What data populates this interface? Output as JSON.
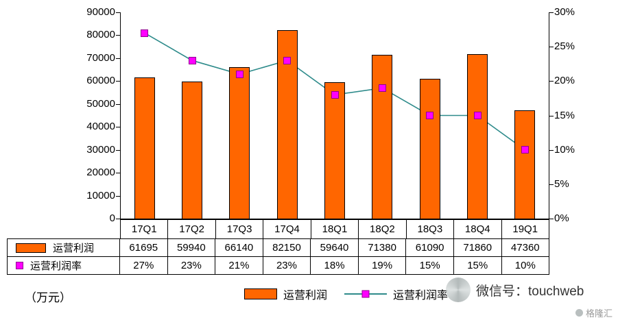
{
  "chart_data": {
    "type": "bar",
    "title": "",
    "categories": [
      "17Q1",
      "17Q2",
      "17Q3",
      "17Q4",
      "18Q1",
      "18Q2",
      "18Q3",
      "18Q4",
      "19Q1"
    ],
    "series": [
      {
        "name": "运营利润",
        "kind": "bar",
        "values": [
          61695,
          59940,
          66140,
          82150,
          59640,
          71380,
          61090,
          71860,
          47360
        ]
      },
      {
        "name": "运营利润率",
        "kind": "line",
        "values": [
          27,
          23,
          21,
          23,
          18,
          19,
          15,
          15,
          10
        ],
        "unit": "%"
      }
    ],
    "left_axis": {
      "min": 0,
      "max": 90000,
      "step": 10000,
      "tick_labels": [
        "0",
        "10000",
        "20000",
        "30000",
        "40000",
        "50000",
        "60000",
        "70000",
        "80000",
        "90000"
      ]
    },
    "right_axis": {
      "min": 0,
      "max": 30,
      "step": 5,
      "tick_labels": [
        "0%",
        "5%",
        "10%",
        "15%",
        "20%",
        "25%",
        "30%"
      ]
    },
    "colors": {
      "bar": "#FF6600",
      "line": "#2E8B8B",
      "marker": "#FF00FF"
    },
    "legend_position": "bottom",
    "grid": false
  },
  "table": {
    "rows": [
      {
        "label": "运营利润",
        "values": [
          "61695",
          "59940",
          "66140",
          "82150",
          "59640",
          "71380",
          "61090",
          "71860",
          "47360"
        ]
      },
      {
        "label": "运营利润率",
        "values": [
          "27%",
          "23%",
          "21%",
          "23%",
          "18%",
          "19%",
          "15%",
          "15%",
          "10%"
        ]
      }
    ]
  },
  "legend": {
    "bar_label": "运营利润",
    "line_label": "运营利润率"
  },
  "footer": {
    "unit_label": "（万元）",
    "wechat_label": "微信号：touchweb",
    "watermark": "格隆汇"
  }
}
